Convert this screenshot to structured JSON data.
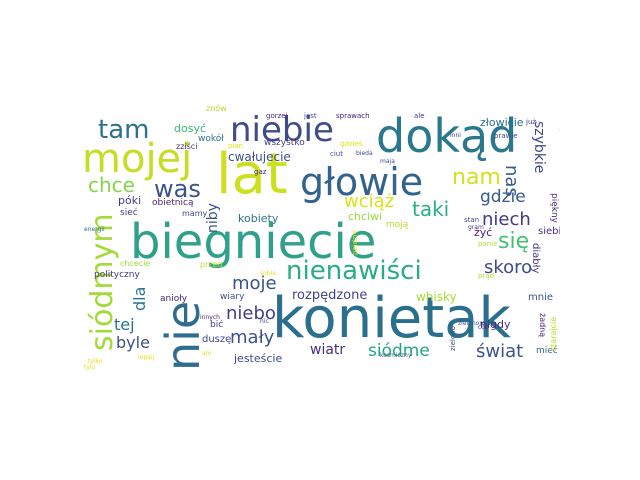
{
  "words": [
    {
      "text": "biegniecie",
      "color": "#2fa08a"
    },
    {
      "text": "konietak",
      "color": "#2b6f8e"
    },
    {
      "text": "lat",
      "color": "#cbe11f"
    },
    {
      "text": "dokąd",
      "color": "#2a778e"
    },
    {
      "text": "mojej",
      "color": "#c4df23"
    },
    {
      "text": "nie",
      "color": "#2e6d8e"
    },
    {
      "text": "głowie",
      "color": "#33628d"
    },
    {
      "text": "nienawiści",
      "color": "#28ae80"
    },
    {
      "text": "niebie",
      "color": "#3e4c8a"
    },
    {
      "text": "siódmym",
      "color": "#a2da37"
    },
    {
      "text": "tam",
      "color": "#2c728e"
    },
    {
      "text": "chce",
      "color": "#86d549"
    },
    {
      "text": "was",
      "color": "#3a538b"
    },
    {
      "text": "nam",
      "color": "#d2e21b"
    },
    {
      "text": "taki",
      "color": "#2ab07f"
    },
    {
      "text": "wciąż",
      "color": "#d8e219"
    },
    {
      "text": "gdzie",
      "color": "#375a8c"
    },
    {
      "text": "nas",
      "color": "#365c8d"
    },
    {
      "text": "szybkie",
      "color": "#3f4889"
    },
    {
      "text": "niech",
      "color": "#453882"
    },
    {
      "text": "się",
      "color": "#46c06f"
    },
    {
      "text": "skoro",
      "color": "#3d4d8a"
    },
    {
      "text": "moje",
      "color": "#3a538b"
    },
    {
      "text": "dla",
      "color": "#2a788e"
    },
    {
      "text": "tej",
      "color": "#2c718e"
    },
    {
      "text": "niebo",
      "color": "#433e85"
    },
    {
      "text": "mały",
      "color": "#3b528b"
    },
    {
      "text": "byle",
      "color": "#3c4f8a"
    },
    {
      "text": "świat",
      "color": "#3b528b"
    },
    {
      "text": "siódme",
      "color": "#21a685"
    },
    {
      "text": "wiatr",
      "color": "#46307e"
    },
    {
      "text": "rozpędzone",
      "color": "#414487"
    },
    {
      "text": "whisky",
      "color": "#a8db34"
    },
    {
      "text": "cwałujecie",
      "color": "#3c4f8a"
    },
    {
      "text": "kobiety",
      "color": "#2c738e"
    },
    {
      "text": "niby",
      "color": "#3b518b"
    },
    {
      "text": "chciwi",
      "color": "#9bd93c"
    },
    {
      "text": "jesteście",
      "color": "#3e4989"
    },
    {
      "text": "nigdy",
      "color": "#46307e"
    },
    {
      "text": "żyć",
      "color": "#481a6c"
    },
    {
      "text": "mnie",
      "color": "#3b528b"
    },
    {
      "text": "siebie",
      "color": "#46317e"
    },
    {
      "text": "diabły",
      "color": "#453781"
    },
    {
      "text": "piękny",
      "color": "#46307e"
    },
    {
      "text": "złowicie",
      "color": "#2d708e"
    },
    {
      "text": "dosyć",
      "color": "#35b779"
    },
    {
      "text": "wokół",
      "color": "#2c728e"
    },
    {
      "text": "zziści",
      "color": "#46327e"
    },
    {
      "text": "póki",
      "color": "#443983"
    },
    {
      "text": "obietnicą",
      "color": "#481f70"
    },
    {
      "text": "mamy",
      "color": "#3e4989"
    },
    {
      "text": "sieć",
      "color": "#453781"
    },
    {
      "text": "chcecie",
      "color": "#a5db36"
    },
    {
      "text": "polityczny",
      "color": "#453882"
    },
    {
      "text": "przed",
      "color": "#b5de2b"
    },
    {
      "text": "anioły",
      "color": "#482475"
    },
    {
      "text": "duszę",
      "color": "#3e4989"
    },
    {
      "text": "bić",
      "color": "#443983"
    },
    {
      "text": "wiary",
      "color": "#3b528b"
    },
    {
      "text": "moją",
      "color": "#b5de2b"
    },
    {
      "text": "wszystko",
      "color": "#433e85"
    },
    {
      "text": "żadną",
      "color": "#481f70"
    },
    {
      "text": "mieć",
      "color": "#31688e"
    },
    {
      "text": "starajcie",
      "color": "#b5de2b"
    },
    {
      "text": "zielono",
      "color": "#3b528b"
    },
    {
      "text": "znów",
      "color": "#b5de2b"
    },
    {
      "text": "gorzej",
      "color": "#481f70"
    },
    {
      "text": "jest",
      "color": "#3e4989"
    },
    {
      "text": "sprawach",
      "color": "#482475"
    },
    {
      "text": "ale",
      "color": "#443983"
    },
    {
      "text": "już",
      "color": "#443983"
    },
    {
      "text": "wymarzone",
      "color": "#b5de2b"
    },
    {
      "text": "prawie",
      "color": "#3e4989"
    },
    {
      "text": "plan",
      "color": "#e3e418"
    },
    {
      "text": "gdzieś",
      "color": "#e3e418"
    },
    {
      "text": "ciut",
      "color": "#3b528b"
    },
    {
      "text": "gaz",
      "color": "#481f70"
    },
    {
      "text": "pójdzie",
      "color": "#e3e418"
    },
    {
      "text": "stan",
      "color": "#3e4989"
    },
    {
      "text": "panie",
      "color": "#b5de2b"
    },
    {
      "text": "prąd",
      "color": "#b5de2b"
    },
    {
      "text": "tylko",
      "color": "#e3e418"
    },
    {
      "text": "lepiej",
      "color": "#e3e418"
    },
    {
      "text": "ani",
      "color": "#e3e418"
    },
    {
      "text": "inni",
      "color": "#443983"
    },
    {
      "text": "gram",
      "color": "#443983"
    },
    {
      "text": "cóż",
      "color": "#443983"
    },
    {
      "text": "energii",
      "color": "#31688e"
    },
    {
      "text": "bieda",
      "color": "#3e4989"
    },
    {
      "text": "mają",
      "color": "#3e4989"
    },
    {
      "text": "kosmiczny",
      "color": "#3b528b"
    },
    {
      "text": "zielonomia",
      "color": "#3b528b"
    },
    {
      "text": "innych",
      "color": "#482475"
    },
    {
      "text": "nic",
      "color": "#3e4989"
    },
    {
      "text": "sobie",
      "color": "#e3e418"
    },
    {
      "text": "tylu",
      "color": "#e3e418"
    }
  ]
}
